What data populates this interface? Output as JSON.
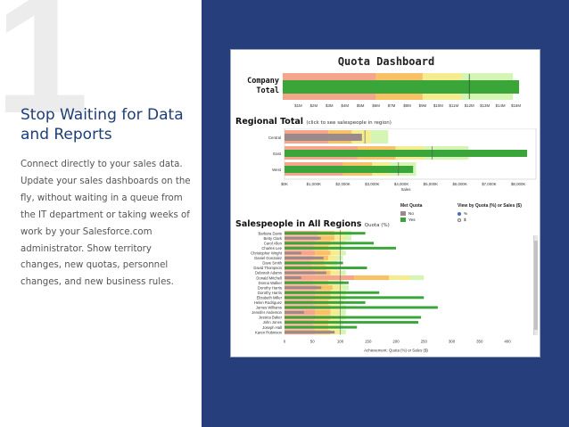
{
  "slide": {
    "number": "1",
    "title": "Stop Waiting for Data and Reports",
    "body": "Connect directly to your sales data. Update your sales dashboards on the fly, without waiting in a queue from the IT department or taking weeks of work by your Salesforce.com administrator. Show territory changes, new quotas, personnel changes, and new business rules."
  },
  "colors": {
    "panel": "#263f7c",
    "title_text": "#1e3e77",
    "bar_green": "#3aa63a",
    "band_red": "#f4a58a",
    "band_orange": "#f9c165",
    "band_yellow": "#f4ec8f",
    "band_lightgreen": "#d4f5b4",
    "no_gray": "#9a8a8a"
  },
  "dashboard": {
    "title": "Quota Dashboard",
    "company": {
      "label_line1": "Company",
      "label_line2": "Total",
      "ticks": [
        "$1M",
        "$2M",
        "$3M",
        "$4M",
        "$5M",
        "$6M",
        "$7M",
        "$8M",
        "$9M",
        "$10M",
        "$11M",
        "$12M",
        "$13M",
        "$14M",
        "$15M"
      ],
      "value": 15.2,
      "quota": 12.0,
      "bands": [
        6.0,
        9.0,
        11.5,
        14.8
      ]
    },
    "regional": {
      "title": "Regional Total",
      "note": "(click to see salespeople in region)",
      "x_label": "Sales",
      "ticks": [
        "$0K",
        "$1,000K",
        "$2,000K",
        "$3,000K",
        "$4,000K",
        "$5,000K",
        "$6,000K",
        "$7,000K",
        "$8,000K"
      ],
      "max": 8300,
      "rows": [
        {
          "name": "Central",
          "value": 2650,
          "met_quota": false,
          "quota": 2750,
          "bands": [
            1500,
            2300,
            2950,
            3550
          ]
        },
        {
          "name": "East",
          "value": 8300,
          "met_quota": true,
          "quota": 5050,
          "bands": [
            2500,
            3800,
            4800,
            6300
          ]
        },
        {
          "name": "West",
          "value": 4400,
          "met_quota": true,
          "quota": 3900,
          "bands": [
            2000,
            3000,
            3600,
            4500
          ]
        }
      ]
    },
    "salespeople": {
      "title": "Salespeople in All Regions",
      "note": "Quota (%)",
      "x_label": "Achievement: Quota (%) or Sales ($)",
      "ticks": [
        "0",
        "50",
        "100",
        "150",
        "200",
        "250",
        "300",
        "350",
        "400"
      ],
      "max": 400,
      "rows": [
        {
          "name": "Barbara Davis",
          "value": 145,
          "met_quota": true,
          "band_max": 120
        },
        {
          "name": "Betty Clark",
          "value": 65,
          "met_quota": false,
          "band_max": 120
        },
        {
          "name": "Carol Allen",
          "value": 160,
          "met_quota": true,
          "band_max": 110
        },
        {
          "name": "Charles Lee",
          "value": 200,
          "met_quota": true,
          "band_max": 105
        },
        {
          "name": "Christopher Wright",
          "value": 30,
          "met_quota": false,
          "band_max": 110
        },
        {
          "name": "Daniel Gonzalez",
          "value": 70,
          "met_quota": false,
          "band_max": 105
        },
        {
          "name": "Dave Smith",
          "value": 105,
          "met_quota": true,
          "band_max": 95
        },
        {
          "name": "David Thompson",
          "value": 148,
          "met_quota": true,
          "band_max": 100
        },
        {
          "name": "Deborah Adams",
          "value": 75,
          "met_quota": false,
          "band_max": 110
        },
        {
          "name": "Donald Mitchell",
          "value": 30,
          "met_quota": false,
          "band_max": 250
        },
        {
          "name": "Donna Walker",
          "value": 115,
          "met_quota": true,
          "band_max": 105
        },
        {
          "name": "Dorothy Harris",
          "value": 66,
          "met_quota": false,
          "band_max": 115
        },
        {
          "name": "Dorothy Harris",
          "value": 170,
          "met_quota": true,
          "band_max": 110
        },
        {
          "name": "Elizabeth Miller",
          "value": 250,
          "met_quota": true,
          "band_max": 110
        },
        {
          "name": "Helen Rodriguez",
          "value": 145,
          "met_quota": true,
          "band_max": 105
        },
        {
          "name": "James Williams",
          "value": 275,
          "met_quota": true,
          "band_max": 110
        },
        {
          "name": "Jennifer Anderson",
          "value": 35,
          "met_quota": false,
          "band_max": 110
        },
        {
          "name": "Jessica Baker",
          "value": 245,
          "met_quota": true,
          "band_max": 110
        },
        {
          "name": "John Jones",
          "value": 240,
          "met_quota": true,
          "band_max": 105
        },
        {
          "name": "Joseph Hall",
          "value": 130,
          "met_quota": true,
          "band_max": 105
        },
        {
          "name": "Karen Robinson",
          "value": 90,
          "met_quota": false,
          "band_max": 110
        }
      ]
    },
    "legend": {
      "met_quota_title": "Met Quota",
      "met_quota_items": [
        "No",
        "Yes"
      ],
      "view_by_title": "View by Quota (%) or Sales ($)",
      "view_by_options": [
        "%",
        "$"
      ],
      "view_by_selected": "%"
    }
  }
}
